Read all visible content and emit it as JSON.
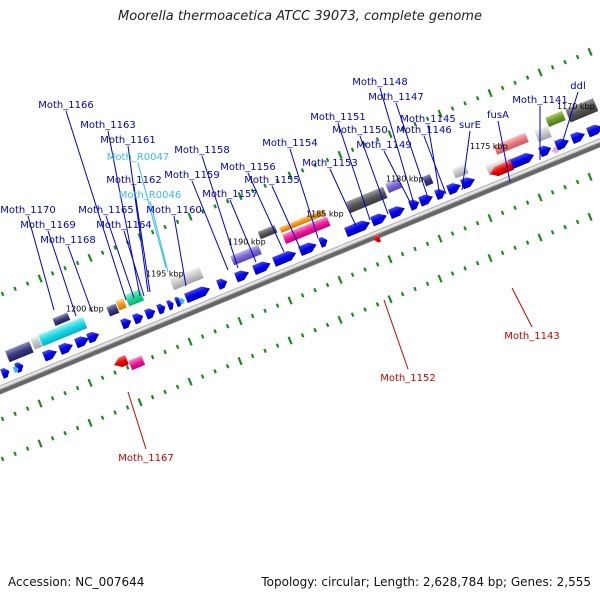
{
  "title": "Moorella thermoacetica ATCC 39073, complete genome",
  "footer": {
    "accession": "Accession: NC_007644",
    "stats": "Topology: circular; Length: 2,628,784 bp; Genes: 2,555"
  },
  "colors": {
    "forward_gene": "#0000e6",
    "reverse_gene": "#e60000",
    "forward_label": "#0000cc",
    "reverse_label": "#cc0000",
    "rna_label": "#33bbee",
    "tick_green": "#1a8c1a",
    "backbone": "#666666"
  },
  "scale_labels": [
    "1170 kbp",
    "1175 kbp",
    "1180 kbp",
    "1185 kbp",
    "1190 kbp",
    "1195 kbp",
    "1200 kbp"
  ],
  "forward_labels": [
    "Moth_1170",
    "Moth_1169",
    "Moth_1168",
    "Moth_1166",
    "Moth_1165",
    "Moth_1164",
    "Moth_1163",
    "Moth_1162",
    "Moth_1161",
    "Moth_1160",
    "Moth_1159",
    "Moth_1158",
    "Moth_1157",
    "Moth_1156",
    "Moth_1155",
    "Moth_1154",
    "Moth_1153",
    "Moth_1151",
    "Moth_1150",
    "Moth_1149",
    "Moth_1148",
    "Moth_1147",
    "Moth_1146",
    "Moth_1145",
    "surE",
    "fusA",
    "Moth_1141",
    "ddl"
  ],
  "rna_labels": [
    "Moth_R0047",
    "Moth_R0046"
  ],
  "reverse_labels": [
    "Moth_1167",
    "Moth_1152",
    "Moth_1143"
  ]
}
